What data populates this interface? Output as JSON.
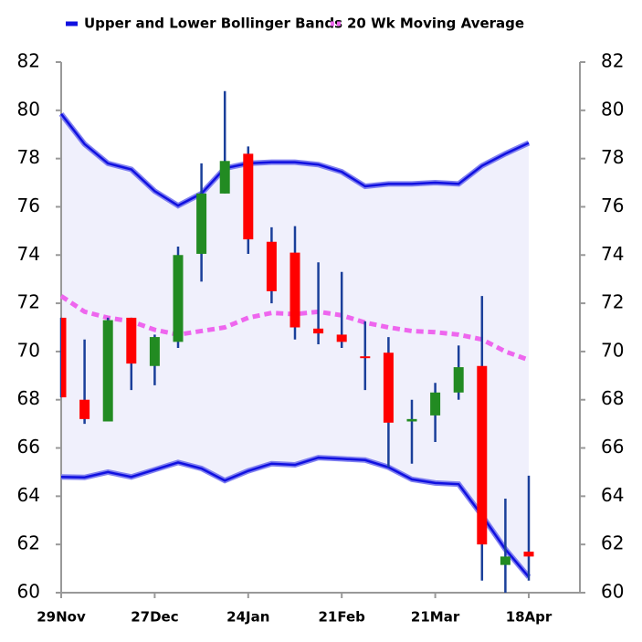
{
  "chart_data": {
    "type": "candlestick",
    "categories": [
      "29Nov",
      null,
      null,
      null,
      "27Dec",
      null,
      null,
      null,
      "24Jan",
      null,
      null,
      null,
      "21Feb",
      null,
      null,
      null,
      "21Mar",
      null,
      null,
      null,
      "18Apr"
    ],
    "candles": {
      "up_color": "#228b22",
      "down_color": "#ff0000",
      "wick_color": "#1a3f9a",
      "open": [
        71.4,
        68.0,
        67.1,
        71.4,
        69.4,
        70.4,
        74.05,
        76.55,
        78.2,
        74.55,
        74.1,
        70.95,
        70.7,
        69.8,
        69.95,
        67.1,
        67.35,
        68.3,
        69.4,
        61.15,
        61.7
      ],
      "high": [
        71.4,
        70.5,
        71.4,
        71.4,
        70.7,
        74.35,
        77.8,
        80.8,
        78.5,
        75.15,
        75.2,
        73.7,
        73.3,
        71.25,
        70.6,
        68.0,
        68.7,
        70.25,
        72.3,
        63.9,
        64.85
      ],
      "low": [
        68.1,
        67.0,
        67.1,
        68.4,
        68.6,
        70.15,
        72.9,
        76.55,
        74.05,
        72.0,
        70.5,
        70.3,
        70.15,
        68.4,
        65.2,
        65.35,
        66.25,
        68.0,
        60.5,
        60.0,
        60.5
      ],
      "close": [
        68.1,
        67.2,
        71.3,
        69.5,
        70.6,
        74.0,
        76.55,
        77.9,
        74.65,
        72.5,
        71.0,
        70.75,
        70.4,
        69.75,
        67.05,
        67.2,
        68.3,
        69.35,
        62.0,
        61.5,
        61.5
      ]
    },
    "bands": {
      "name": "Upper and Lower Bollinger Bands",
      "color": "#1010e0",
      "fill": "#f0f0fc",
      "upper": [
        79.85,
        78.6,
        77.8,
        77.55,
        76.65,
        76.05,
        76.55,
        77.6,
        77.8,
        77.85,
        77.85,
        77.75,
        77.45,
        76.85,
        76.95,
        76.95,
        77.0,
        76.95,
        77.7,
        78.2,
        78.65
      ],
      "lower": [
        64.8,
        64.78,
        65.0,
        64.8,
        65.1,
        65.4,
        65.15,
        64.65,
        65.05,
        65.35,
        65.3,
        65.6,
        65.55,
        65.5,
        65.2,
        64.7,
        64.55,
        64.5,
        63.2,
        61.8,
        60.65
      ]
    },
    "moving_average": {
      "name": "20 Wk Moving Average",
      "color": "#ee66ee",
      "values": [
        72.3,
        71.65,
        71.4,
        71.25,
        70.9,
        70.7,
        70.85,
        71.0,
        71.4,
        71.6,
        71.55,
        71.65,
        71.5,
        71.2,
        71.0,
        70.85,
        70.8,
        70.7,
        70.5,
        70.0,
        69.65
      ]
    },
    "ylim": [
      60,
      82
    ],
    "yticks": [
      60,
      62,
      64,
      66,
      68,
      70,
      72,
      74,
      76,
      78,
      80,
      82
    ],
    "y2lim": [
      60,
      82
    ],
    "y2ticks": [
      60,
      62,
      64,
      66,
      68,
      70,
      72,
      74,
      76,
      78,
      80,
      82
    ]
  }
}
